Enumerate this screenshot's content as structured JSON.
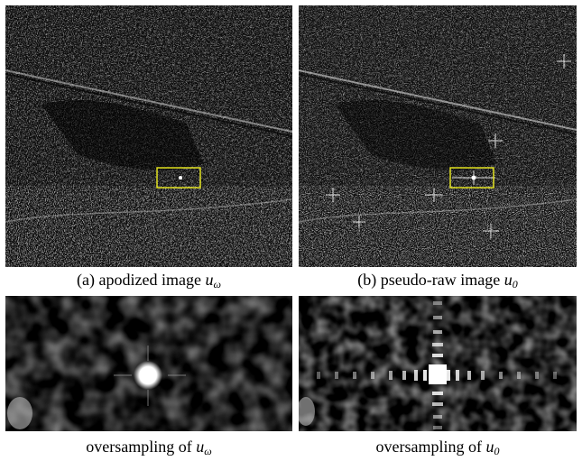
{
  "figure": {
    "panels": [
      {
        "id": "a",
        "caption_prefix": "(a) apodized image",
        "caption_symbol": "u",
        "caption_subscript": "ω",
        "image": "apodized SAR image"
      },
      {
        "id": "b",
        "caption_prefix": "(b) pseudo-raw image",
        "caption_symbol": "u",
        "caption_subscript": "0",
        "image": "pseudo-raw SAR image"
      }
    ],
    "zooms": [
      {
        "caption_prefix": "oversampling of",
        "caption_symbol": "u",
        "caption_subscript": "ω",
        "image": "oversampled zoom of apodized image"
      },
      {
        "caption_prefix": "oversampling of",
        "caption_symbol": "u",
        "caption_subscript": "0",
        "image": "oversampled zoom of pseudo-raw image"
      }
    ],
    "colors": {
      "highlight_box": "#e0e020",
      "background": "#ffffff"
    }
  }
}
